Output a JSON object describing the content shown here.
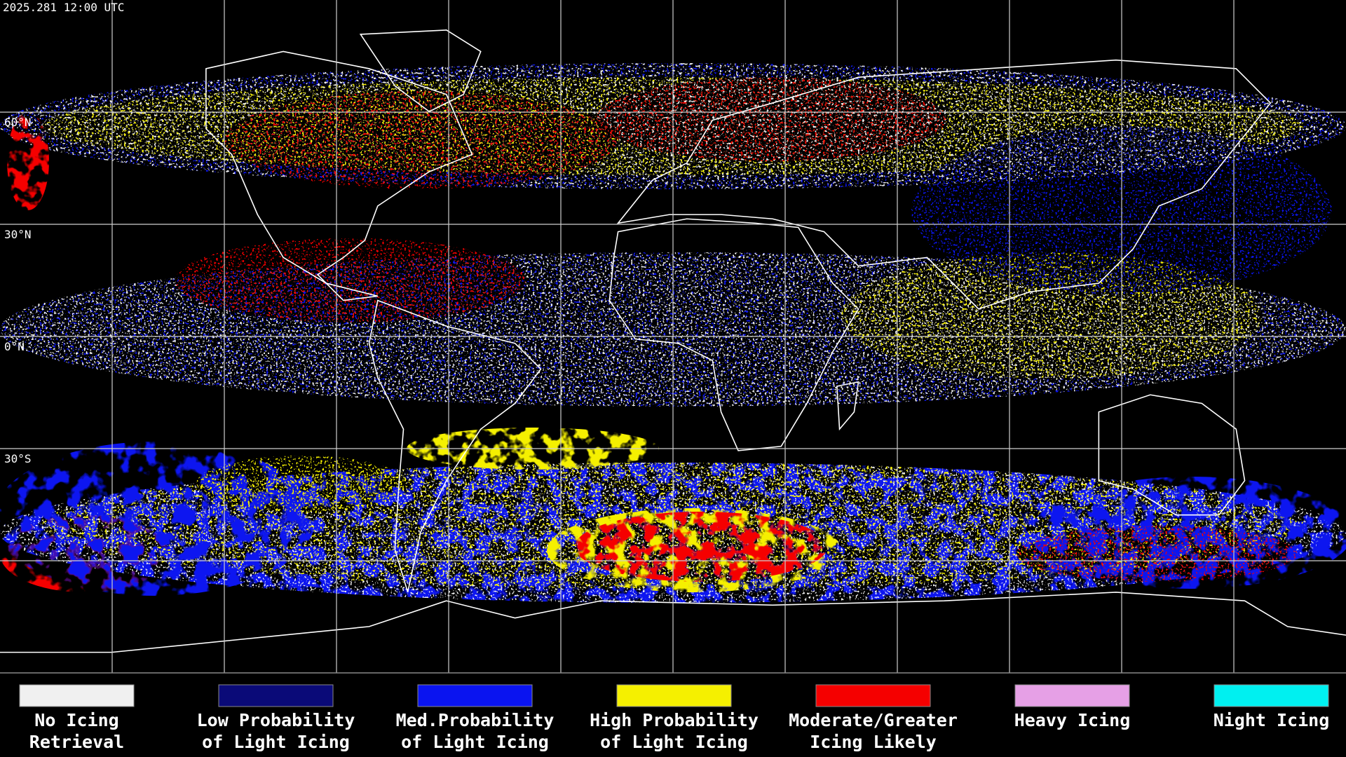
{
  "header": {
    "timestamp": "2025.281 12:00 UTC"
  },
  "map": {
    "latitude_labels": [
      "60°N",
      "30°N",
      "0°N",
      "30°S"
    ]
  },
  "legend": [
    {
      "color": "#f0f0f0",
      "lines": [
        "No Icing",
        "Retrieval"
      ]
    },
    {
      "color": "#0a0a78",
      "lines": [
        "Low Probability",
        "of Light Icing"
      ]
    },
    {
      "color": "#0a14f0",
      "lines": [
        "Med.Probability",
        "of Light Icing"
      ]
    },
    {
      "color": "#f5f000",
      "lines": [
        "High Probability",
        "of Light Icing"
      ]
    },
    {
      "color": "#f50000",
      "lines": [
        "Moderate/Greater",
        "Icing Likely"
      ]
    },
    {
      "color": "#e6a0e6",
      "lines": [
        "Heavy Icing"
      ]
    },
    {
      "color": "#00f0f0",
      "lines": [
        "Night Icing"
      ]
    }
  ]
}
